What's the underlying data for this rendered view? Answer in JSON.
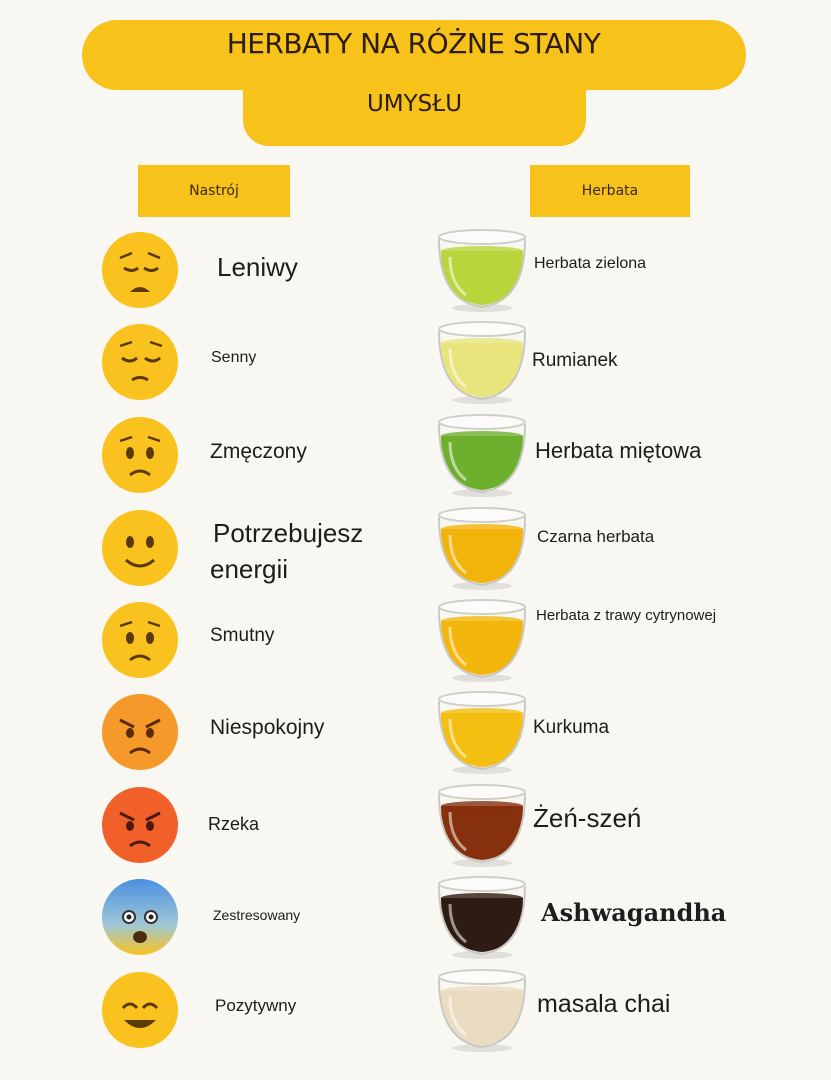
{
  "title": {
    "line1": "HERBATY NA RÓŻNE STANY",
    "line2": "UMYSŁU"
  },
  "headers": {
    "mood": "Nastrój",
    "tea": "Herbata"
  },
  "colors": {
    "accent": "#f7c21a",
    "background": "#f9f7f2"
  },
  "rows": [
    {
      "mood": "Leniwy",
      "mood_icon": "tired-face-emoji",
      "face_color": "#f9c21f",
      "tea": "Herbata zielona",
      "tea_color": "#b9d53c"
    },
    {
      "mood": "Senny",
      "mood_icon": "sleepy-relieved-face-emoji",
      "face_color": "#f9c21f",
      "tea": "Rumianek",
      "tea_color": "#e9e57c"
    },
    {
      "mood": "Zmęczony",
      "mood_icon": "worried-face-emoji",
      "face_color": "#f9c21f",
      "tea": "Herbata miętowa",
      "tea_color": "#6db02e"
    },
    {
      "mood": "Potrzebujesz energii",
      "mood_line1": "Potrzebujesz",
      "mood_line2": "energii",
      "mood_icon": "slightly-smiling-face-emoji",
      "face_color": "#f9c21f",
      "tea": "Czarna herbata",
      "tea_color": "#f2b30b"
    },
    {
      "mood": "Smutny",
      "mood_icon": "sad-face-emoji",
      "face_color": "#f9c21f",
      "tea": "Herbata z trawy cytrynowej",
      "tea_color": "#f3b60c"
    },
    {
      "mood": "Niespokojny",
      "mood_icon": "angry-face-emoji",
      "face_color": "#f59a2a",
      "tea": "Kurkuma",
      "tea_color": "#f5bf12"
    },
    {
      "mood": "Rzeka",
      "mood_icon": "pouting-face-emoji",
      "face_color": "#f2602a",
      "tea": "Żeń-szeń",
      "tea_color": "#86300e"
    },
    {
      "mood": "Zestresowany",
      "mood_icon": "anxious-face-emoji",
      "face_color": "#f9c21f",
      "tea": "Ashwagandha",
      "tea_color": "#2e1b12"
    },
    {
      "mood": "Pozytywny",
      "mood_icon": "smiling-face-emoji",
      "face_color": "#f9c21f",
      "tea": "masala chai",
      "tea_color": "#eadcc0"
    }
  ]
}
